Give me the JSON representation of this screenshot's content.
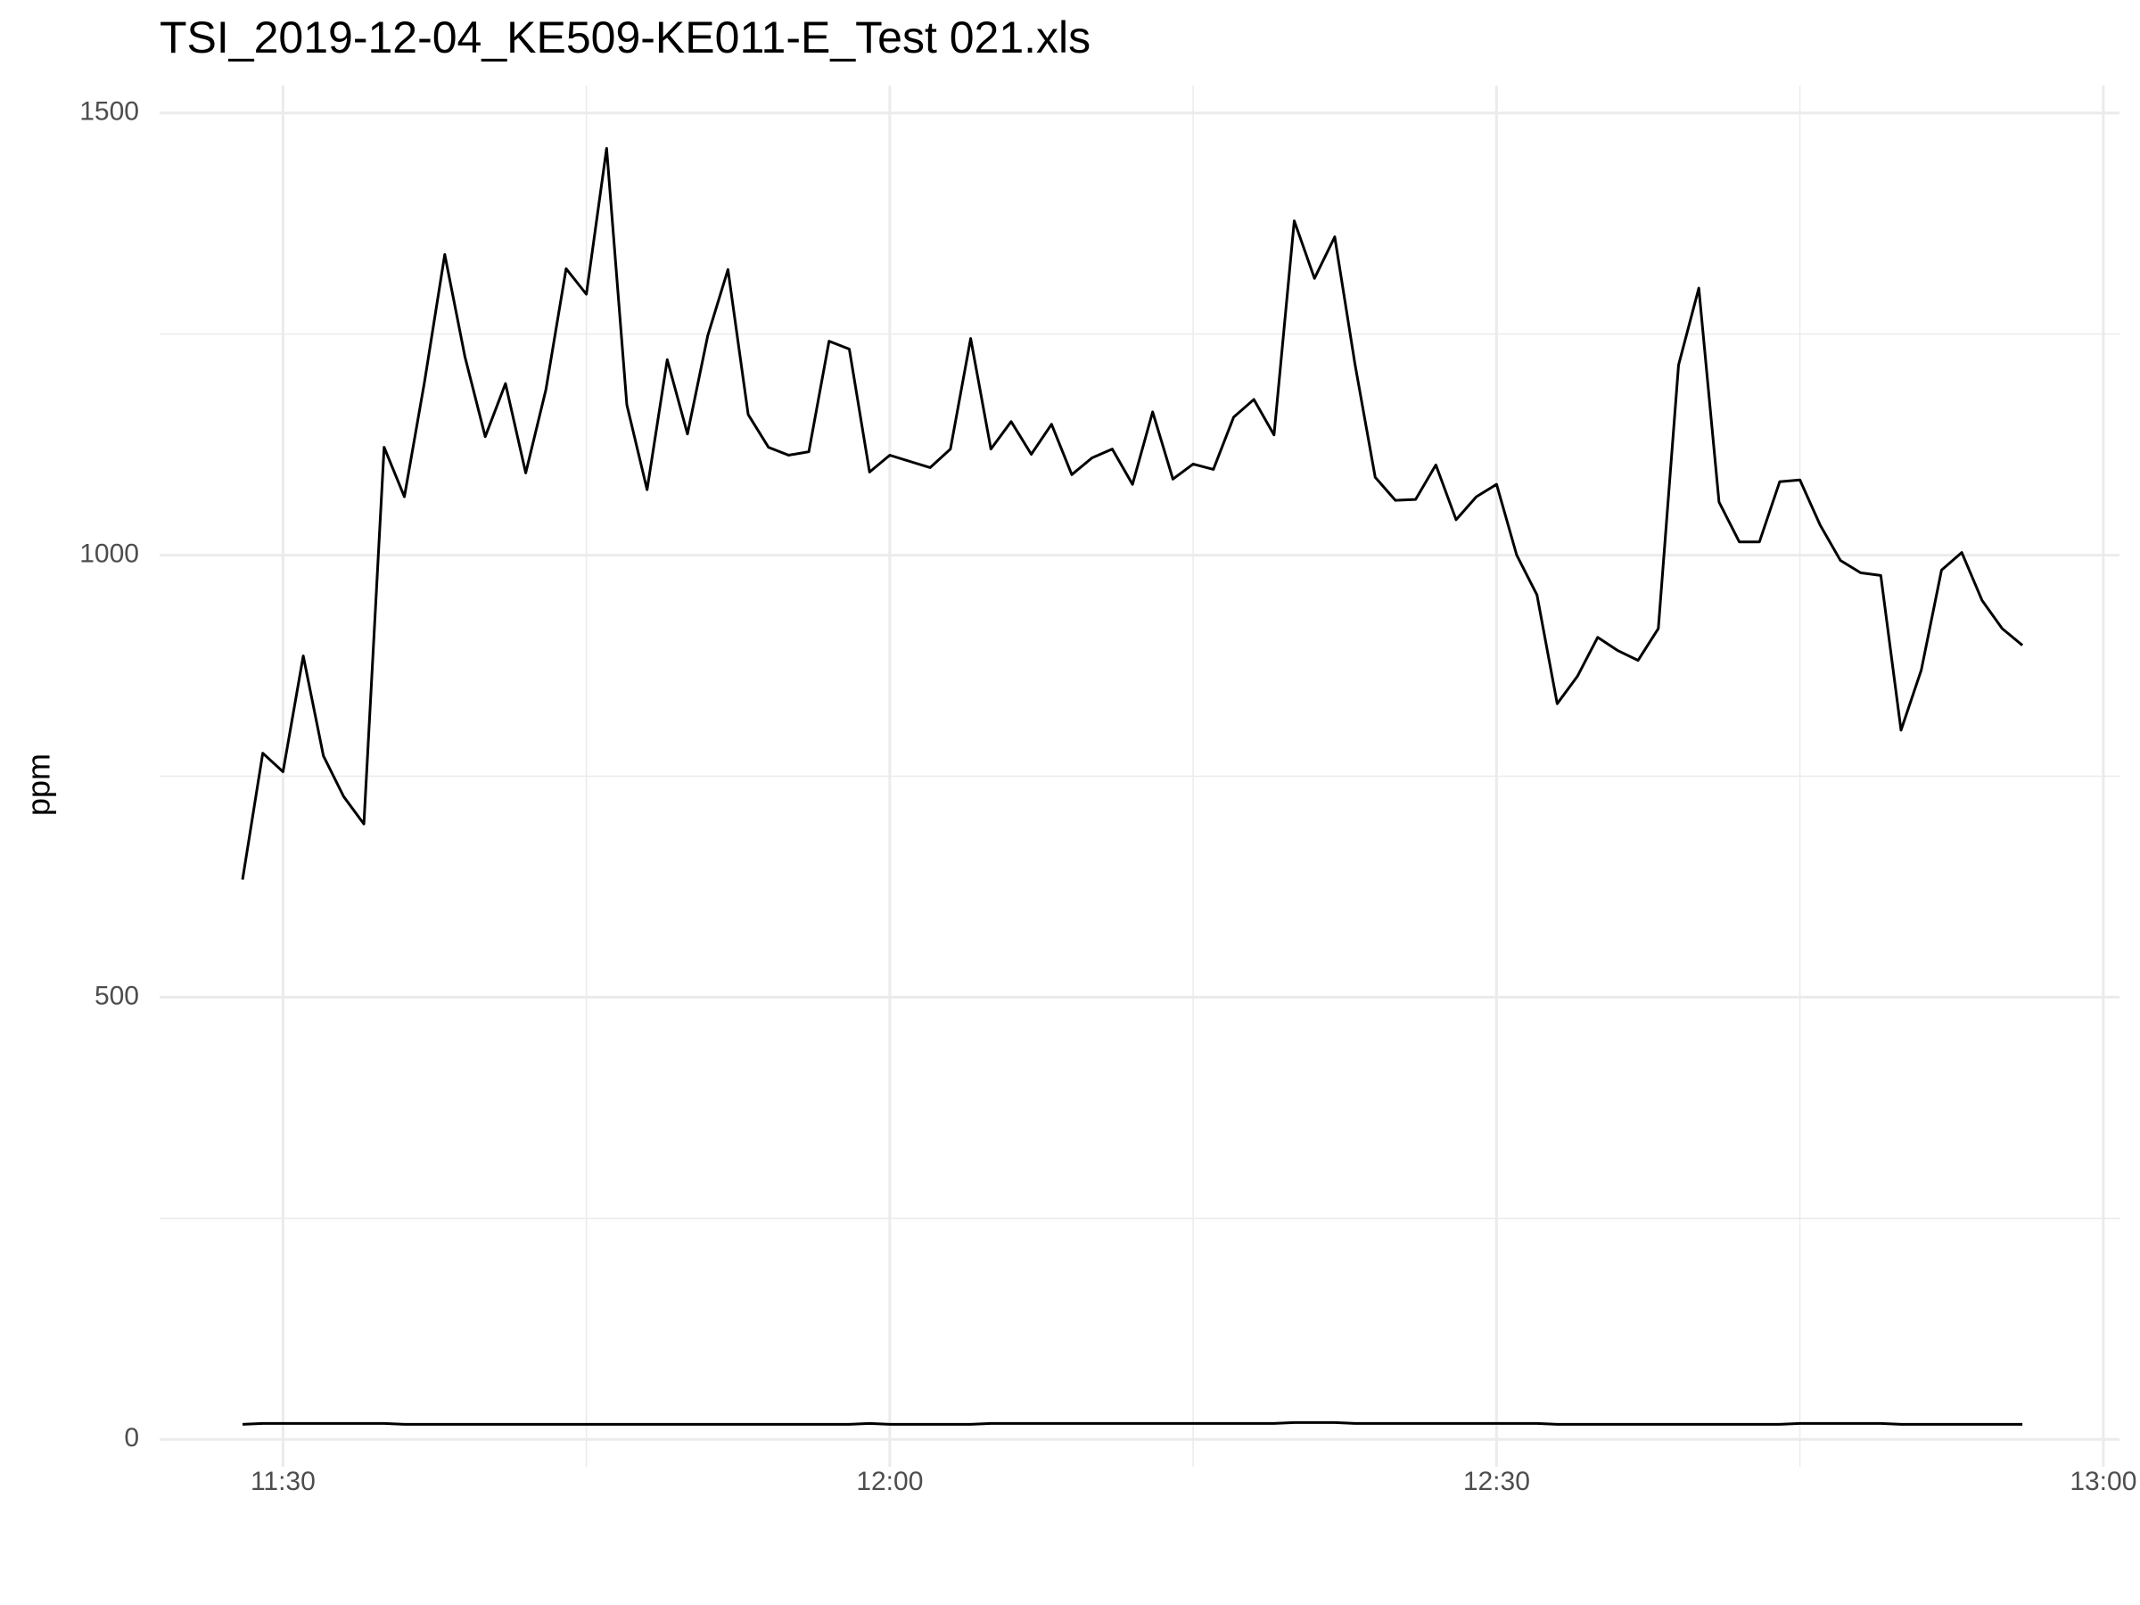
{
  "chart_data": {
    "type": "line",
    "title": "TSI_2019-12-04_KE509-KE011-E_Test 021.xls",
    "y_label": "ppm",
    "x": [
      688,
      689,
      690,
      691,
      692,
      693,
      694,
      695,
      696,
      697,
      698,
      699,
      700,
      701,
      702,
      703,
      704,
      705,
      706,
      707,
      708,
      709,
      710,
      711,
      712,
      713,
      714,
      715,
      716,
      717,
      718,
      719,
      720,
      721,
      722,
      723,
      724,
      725,
      726,
      727,
      728,
      729,
      730,
      731,
      732,
      733,
      734,
      735,
      736,
      737,
      738,
      739,
      740,
      741,
      742,
      743,
      744,
      745,
      746,
      747,
      748,
      749,
      750,
      751,
      752,
      753,
      754,
      755,
      756,
      757,
      758,
      759,
      760,
      761,
      762,
      763,
      764,
      765,
      766,
      767,
      768,
      769,
      770,
      771,
      772,
      773,
      774,
      775,
      776
    ],
    "series": [
      {
        "color": "#000000",
        "values": [
          633,
          776,
          755,
          886,
          773,
          727,
          696,
          1122,
          1066,
          1196,
          1340,
          1224,
          1134,
          1194,
          1093,
          1187,
          1324,
          1295,
          1460,
          1170,
          1074,
          1221,
          1137,
          1248,
          1323,
          1159,
          1122,
          1113,
          1117,
          1242,
          1233,
          1094,
          1113,
          1106,
          1099,
          1120,
          1245,
          1120,
          1151,
          1114,
          1148,
          1091,
          1110,
          1120,
          1080,
          1162,
          1086,
          1103,
          1097,
          1156,
          1176,
          1136,
          1378,
          1313,
          1360,
          1216,
          1088,
          1062,
          1063,
          1102,
          1040,
          1066,
          1080,
          1000,
          955,
          832,
          863,
          907,
          892,
          881,
          917,
          1215,
          1302,
          1060,
          1015,
          1015,
          1083,
          1085,
          1034,
          994,
          980,
          977,
          802,
          870,
          983,
          1003,
          949,
          917,
          898
        ]
      },
      {
        "color": "#000000",
        "values": [
          17,
          18,
          18,
          18,
          18,
          18,
          18,
          18,
          17,
          17,
          17,
          17,
          17,
          17,
          17,
          17,
          17,
          17,
          17,
          17,
          17,
          17,
          17,
          17,
          17,
          17,
          17,
          17,
          17,
          17,
          17,
          18,
          17,
          17,
          17,
          17,
          17,
          18,
          18,
          18,
          18,
          18,
          18,
          18,
          18,
          18,
          18,
          18,
          18,
          18,
          18,
          18,
          19,
          19,
          19,
          18,
          18,
          18,
          18,
          18,
          18,
          18,
          18,
          18,
          18,
          17,
          17,
          17,
          17,
          17,
          17,
          17,
          17,
          17,
          17,
          17,
          17,
          18,
          18,
          18,
          18,
          18,
          17,
          17,
          17,
          17,
          17,
          17,
          17
        ]
      }
    ],
    "xlim": [
      683.9,
      780.8
    ],
    "xticks": [
      {
        "value": 690,
        "label": "11:30"
      },
      {
        "value": 720,
        "label": "12:00"
      },
      {
        "value": 750,
        "label": "12:30"
      },
      {
        "value": 780,
        "label": "13:00"
      }
    ],
    "xminor": [
      705,
      735,
      765
    ],
    "ylim": [
      -31,
      1531
    ],
    "yticks": [
      0,
      500,
      1000,
      1500
    ],
    "yminor": [
      250,
      750,
      1250
    ],
    "grid": true
  }
}
